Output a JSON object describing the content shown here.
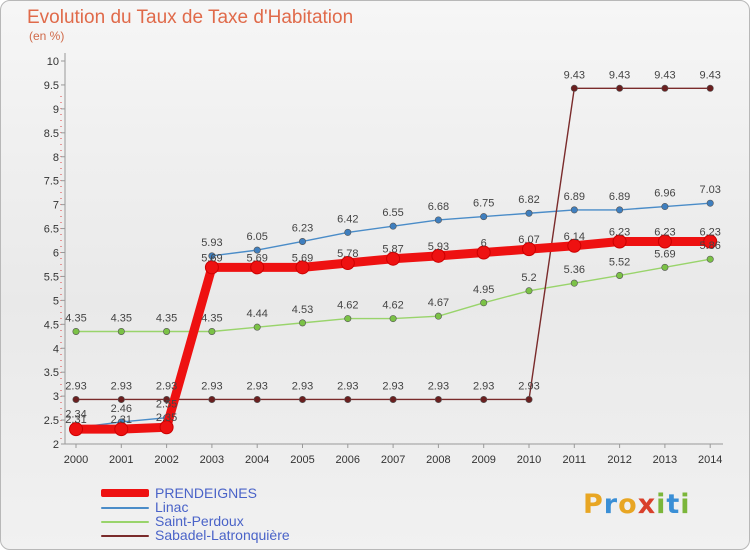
{
  "title": "Evolution du Taux de Taxe d'Habitation",
  "subtitle": "(en %)",
  "logo": {
    "letters": [
      {
        "char": "P",
        "color": "#e8a623"
      },
      {
        "char": "r",
        "color": "#3a8fd6"
      },
      {
        "char": "o",
        "color": "#e8a623"
      },
      {
        "char": "x",
        "color": "#d9402b"
      },
      {
        "char": "i",
        "color": "#7bb63a"
      },
      {
        "char": "t",
        "color": "#3a8fd6"
      },
      {
        "char": "i",
        "color": "#7bb63a"
      }
    ]
  },
  "chart_data": {
    "type": "line",
    "title": "Evolution du Taux de Taxe d'Habitation",
    "subtitle": "(en %)",
    "x": [
      2000,
      2001,
      2002,
      2003,
      2004,
      2005,
      2006,
      2007,
      2008,
      2009,
      2010,
      2011,
      2012,
      2013,
      2014
    ],
    "ylim": [
      2,
      10
    ],
    "yticks": [
      2,
      2.5,
      3,
      3.5,
      4,
      4.5,
      5,
      5.5,
      6,
      6.5,
      7,
      7.5,
      8,
      8.5,
      9,
      9.5,
      10
    ],
    "grid": false,
    "legend_position": "bottom-left",
    "series": [
      {
        "name": "PRENDEIGNES",
        "color": "#ee1111",
        "emphasis": true,
        "values": [
          2.31,
          2.31,
          2.35,
          5.69,
          5.69,
          5.69,
          5.78,
          5.87,
          5.93,
          6,
          6.07,
          6.14,
          6.23,
          6.23,
          6.23
        ]
      },
      {
        "name": "Linac",
        "color": "#4a8cc8",
        "marker": "#3f7fbf",
        "values": [
          2.34,
          2.46,
          2.55,
          5.93,
          6.05,
          6.23,
          6.42,
          6.55,
          6.68,
          6.75,
          6.82,
          6.89,
          6.89,
          6.96,
          7.03
        ]
      },
      {
        "name": "Saint-Perdoux",
        "color": "#99d46b",
        "marker": "#7bc246",
        "values": [
          4.35,
          4.35,
          4.35,
          4.35,
          4.44,
          4.53,
          4.62,
          4.62,
          4.67,
          4.95,
          5.2,
          5.36,
          5.52,
          5.69,
          5.86
        ]
      },
      {
        "name": "Sabadel-Latronquière",
        "color": "#7a2b2b",
        "marker": "#6a1f1f",
        "values": [
          2.93,
          2.93,
          2.93,
          2.93,
          2.93,
          2.93,
          2.93,
          2.93,
          2.93,
          2.93,
          2.93,
          9.43,
          9.43,
          9.43,
          9.43
        ]
      }
    ]
  }
}
